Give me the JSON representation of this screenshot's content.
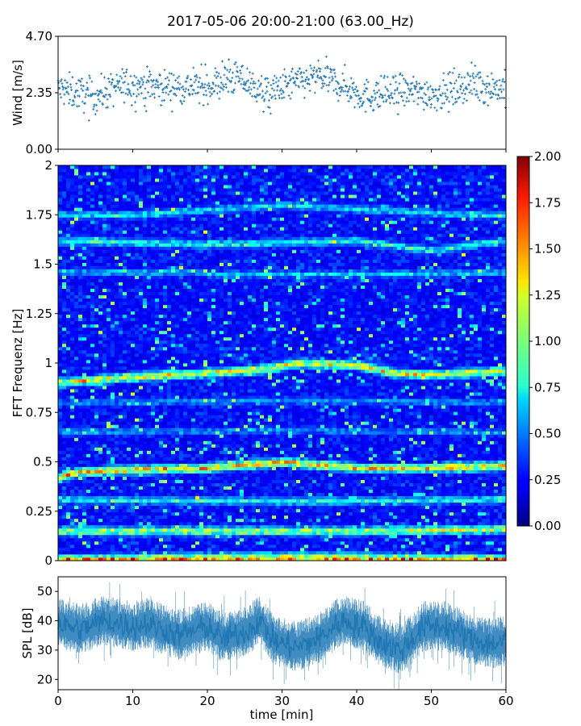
{
  "title": "2017-05-06 20:00-21:00 (63.00_Hz)",
  "colors": {
    "wind": "#1f77b4",
    "spl": "#1f77b4"
  },
  "chart_data": [
    {
      "type": "scatter",
      "name": "wind",
      "ylabel": "Wind [m/s]",
      "xlim": [
        0,
        60
      ],
      "ylim": [
        0,
        4.7
      ],
      "yticks": [
        "0.00",
        "2.35",
        "4.70"
      ],
      "xticks": [
        0,
        10,
        20,
        30,
        40,
        50,
        60
      ],
      "mean_profile": [
        {
          "x": 0,
          "y": 2.5
        },
        {
          "x": 5,
          "y": 2.2
        },
        {
          "x": 9,
          "y": 2.7
        },
        {
          "x": 15,
          "y": 2.6
        },
        {
          "x": 20,
          "y": 2.6
        },
        {
          "x": 24,
          "y": 3.0
        },
        {
          "x": 28,
          "y": 2.3
        },
        {
          "x": 31,
          "y": 2.7
        },
        {
          "x": 35,
          "y": 3.0
        },
        {
          "x": 38,
          "y": 2.7
        },
        {
          "x": 41,
          "y": 2.2
        },
        {
          "x": 44,
          "y": 2.3
        },
        {
          "x": 47,
          "y": 2.4
        },
        {
          "x": 51,
          "y": 2.3
        },
        {
          "x": 55,
          "y": 2.7
        },
        {
          "x": 60,
          "y": 2.5
        }
      ],
      "spread": 0.35
    },
    {
      "type": "heatmap",
      "name": "spectrogram",
      "ylabel": "FFT Frequenz [Hz]",
      "xlim": [
        0,
        60
      ],
      "ylim": [
        0,
        2
      ],
      "yticks": [
        "0",
        "0.25",
        "0.5",
        "0.75",
        "1",
        "1.25",
        "1.5",
        "1.75",
        "2"
      ],
      "colormap": "jet",
      "colorbar": {
        "min": 0,
        "max": 2,
        "ticks": [
          "0.00",
          "0.25",
          "0.50",
          "0.75",
          "1.00",
          "1.25",
          "1.50",
          "1.75",
          "2.00"
        ]
      },
      "ridges": [
        {
          "points": [
            [
              0,
              0.42
            ],
            [
              3,
              0.45
            ],
            [
              10,
              0.46
            ],
            [
              20,
              0.47
            ],
            [
              30,
              0.5
            ],
            [
              40,
              0.47
            ],
            [
              50,
              0.47
            ],
            [
              60,
              0.48
            ]
          ],
          "intensity": 1.7
        },
        {
          "points": [
            [
              0,
              0.9
            ],
            [
              10,
              0.93
            ],
            [
              20,
              0.95
            ],
            [
              28,
              0.97
            ],
            [
              32,
              1.0
            ],
            [
              40,
              0.99
            ],
            [
              45,
              0.95
            ],
            [
              50,
              0.94
            ],
            [
              60,
              0.96
            ]
          ],
          "intensity": 1.6
        },
        {
          "points": [
            [
              0,
              0.15
            ],
            [
              20,
              0.15
            ],
            [
              40,
              0.15
            ],
            [
              60,
              0.16
            ]
          ],
          "intensity": 1.4
        },
        {
          "points": [
            [
              0,
              0.01
            ],
            [
              30,
              0.02
            ],
            [
              60,
              0.01
            ]
          ],
          "intensity": 1.5
        },
        {
          "points": [
            [
              0,
              0.31
            ],
            [
              30,
              0.3
            ],
            [
              60,
              0.31
            ]
          ],
          "intensity": 1.0
        },
        {
          "points": [
            [
              0,
              1.62
            ],
            [
              20,
              1.6
            ],
            [
              40,
              1.62
            ],
            [
              50,
              1.57
            ],
            [
              60,
              1.62
            ]
          ],
          "intensity": 1.0
        },
        {
          "points": [
            [
              10,
              1.75
            ],
            [
              30,
              1.8
            ],
            [
              55,
              1.75
            ]
          ],
          "intensity": 0.9
        },
        {
          "points": [
            [
              20,
              1.45
            ],
            [
              40,
              1.45
            ],
            [
              60,
              1.46
            ]
          ],
          "intensity": 0.8
        },
        {
          "points": [
            [
              0,
              0.65
            ],
            [
              30,
              0.66
            ],
            [
              60,
              0.65
            ]
          ],
          "intensity": 0.7
        },
        {
          "points": [
            [
              0,
              0.8
            ],
            [
              30,
              0.81
            ],
            [
              60,
              0.8
            ]
          ],
          "intensity": 0.7
        }
      ]
    },
    {
      "type": "area",
      "name": "spl",
      "ylabel": "SPL [dB]",
      "xlabel": "time [min]",
      "xlim": [
        0,
        60
      ],
      "ylim": [
        16.5,
        55
      ],
      "yticks": [
        20,
        30,
        40,
        50
      ],
      "xticks": [
        0,
        10,
        20,
        30,
        40,
        50,
        60
      ],
      "mean_profile": [
        {
          "x": 0,
          "y": 39
        },
        {
          "x": 3,
          "y": 37
        },
        {
          "x": 6,
          "y": 40
        },
        {
          "x": 10,
          "y": 38
        },
        {
          "x": 12,
          "y": 39
        },
        {
          "x": 16,
          "y": 35
        },
        {
          "x": 20,
          "y": 38
        },
        {
          "x": 22,
          "y": 34
        },
        {
          "x": 25,
          "y": 36
        },
        {
          "x": 27,
          "y": 40
        },
        {
          "x": 29,
          "y": 33
        },
        {
          "x": 32,
          "y": 31
        },
        {
          "x": 35,
          "y": 34
        },
        {
          "x": 38,
          "y": 40
        },
        {
          "x": 41,
          "y": 38
        },
        {
          "x": 43,
          "y": 33
        },
        {
          "x": 46,
          "y": 30
        },
        {
          "x": 49,
          "y": 38
        },
        {
          "x": 52,
          "y": 38
        },
        {
          "x": 55,
          "y": 34
        },
        {
          "x": 58,
          "y": 32
        },
        {
          "x": 60,
          "y": 33
        }
      ],
      "band_low": 7,
      "band_high": 8
    }
  ]
}
